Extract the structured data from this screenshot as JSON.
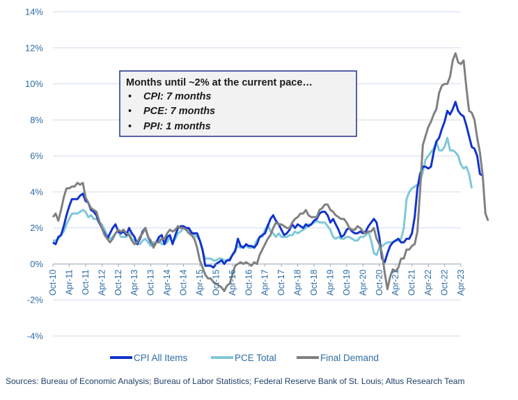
{
  "chart_data": {
    "type": "line",
    "title": "",
    "xlabel": "",
    "ylabel": "",
    "ylim": [
      -4,
      14
    ],
    "yticks": [
      -4,
      -2,
      0,
      2,
      4,
      6,
      8,
      10,
      12,
      14
    ],
    "ytick_labels": [
      "-4%",
      "-2%",
      "0%",
      "2%",
      "4%",
      "6%",
      "8%",
      "10%",
      "12%",
      "14%"
    ],
    "x_start": "2010-10",
    "xtick_labels": [
      "Oct-10",
      "Apr-11",
      "Oct-11",
      "Apr-12",
      "Oct-12",
      "Apr-13",
      "Oct-13",
      "Apr-14",
      "Oct-14",
      "Apr-15",
      "Oct-15",
      "Apr-16",
      "Oct-16",
      "Apr-17",
      "Oct-17",
      "Apr-18",
      "Oct-18",
      "Apr-19",
      "Oct-19",
      "Apr-20",
      "Oct-20",
      "Apr-21",
      "Oct-21",
      "Apr-22",
      "Oct-22",
      "Apr-23"
    ],
    "grid": true,
    "legend_position": "bottom",
    "series": [
      {
        "name": "CPI All Items",
        "color": "#1133CC",
        "start_month": 0,
        "values": [
          1.2,
          1.1,
          1.5,
          1.6,
          2.1,
          2.7,
          3.2,
          3.6,
          3.6,
          3.6,
          3.8,
          3.9,
          3.5,
          3.4,
          3.0,
          2.9,
          2.7,
          2.3,
          2.0,
          1.7,
          1.4,
          1.7,
          2.0,
          2.2,
          1.8,
          1.7,
          1.8,
          1.6,
          2.0,
          1.7,
          1.5,
          1.1,
          1.4,
          1.8,
          2.0,
          1.5,
          1.2,
          1.0,
          1.2,
          1.5,
          1.6,
          1.1,
          1.5,
          1.6,
          1.1,
          1.6,
          2.0,
          2.1,
          2.1,
          2.0,
          2.0,
          1.7,
          1.7,
          1.7,
          1.3,
          0.8,
          -0.1,
          -0.1,
          -0.1,
          -0.2,
          0.0,
          0.1,
          0.2,
          0.0,
          0.2,
          0.2,
          0.5,
          0.7,
          1.4,
          1.0,
          0.9,
          1.1,
          1.0,
          1.0,
          0.9,
          1.1,
          1.5,
          1.6,
          1.7,
          2.1,
          2.5,
          2.7,
          2.4,
          2.2,
          1.9,
          1.6,
          1.7,
          1.9,
          2.2,
          2.0,
          2.2,
          2.1,
          2.0,
          2.2,
          2.1,
          2.2,
          2.4,
          2.5,
          2.8,
          2.9,
          2.9,
          2.7,
          2.3,
          2.5,
          2.2,
          1.9,
          1.5,
          1.6,
          1.9,
          2.0,
          1.8,
          1.7,
          1.7,
          1.8,
          1.7,
          1.8,
          2.1,
          2.3,
          2.5,
          2.3,
          1.5,
          0.3,
          0.1,
          0.6,
          1.0,
          1.2,
          1.3,
          1.4,
          1.2,
          1.2,
          1.4,
          1.4,
          1.7,
          2.6,
          4.2,
          5.0,
          5.4,
          5.4,
          5.3,
          5.4,
          6.2,
          6.8,
          7.0,
          7.5,
          7.9,
          8.5,
          8.3,
          8.6,
          9.0,
          8.5,
          8.3,
          8.2,
          7.7,
          7.1,
          6.5,
          6.4,
          6.0,
          5.0,
          4.9
        ],
        "note": "monthly YoY %, Oct-10 to Apr-23"
      },
      {
        "name": "PCE Total",
        "color": "#7EC8D8",
        "start_month": 0,
        "values": [
          1.3,
          1.3,
          1.4,
          1.6,
          1.8,
          2.2,
          2.5,
          2.8,
          2.8,
          2.8,
          2.9,
          3.0,
          2.9,
          2.6,
          2.7,
          2.5,
          2.5,
          2.3,
          2.2,
          1.9,
          1.6,
          1.4,
          1.5,
          1.7,
          1.8,
          1.5,
          1.5,
          1.5,
          1.7,
          1.4,
          1.3,
          1.1,
          1.1,
          1.3,
          1.4,
          1.2,
          1.0,
          1.2,
          1.2,
          1.4,
          1.1,
          1.1,
          1.2,
          1.5,
          1.2,
          1.4,
          1.7,
          1.8,
          2.0,
          1.9,
          1.9,
          1.8,
          1.6,
          1.5,
          1.3,
          0.7,
          0.3,
          0.3,
          0.3,
          0.2,
          0.2,
          0.3,
          0.3,
          0.2,
          0.2,
          0.3,
          0.5,
          0.8,
          1.0,
          0.9,
          1.0,
          1.0,
          0.9,
          0.9,
          1.0,
          1.3,
          1.5,
          1.5,
          1.9,
          2.2,
          1.8,
          1.7,
          1.5,
          1.7,
          1.5,
          1.5,
          1.5,
          1.6,
          1.6,
          1.8,
          1.7,
          1.8,
          1.9,
          2.0,
          2.2,
          2.2,
          2.3,
          2.4,
          2.3,
          2.3,
          2.3,
          2.1,
          1.9,
          1.5,
          1.4,
          1.5,
          1.4,
          1.4,
          1.5,
          1.5,
          1.4,
          1.3,
          1.3,
          1.5,
          1.5,
          1.6,
          1.8,
          1.3,
          0.6,
          0.5,
          0.9,
          1.0,
          1.1,
          1.2,
          1.2,
          1.2,
          1.3,
          1.3,
          1.4,
          2.0,
          3.6,
          4.0,
          4.2,
          4.3,
          4.4,
          4.6,
          5.1,
          5.8,
          6.0,
          6.2,
          6.4,
          6.8,
          6.3,
          6.3,
          6.5,
          7.0,
          6.3,
          6.3,
          6.2,
          6.0,
          5.5,
          5.3,
          5.4,
          5.0,
          4.2
        ]
      },
      {
        "name": "Final Demand",
        "color": "#808080",
        "start_month": 0,
        "values": [
          2.6,
          2.8,
          2.4,
          3.0,
          3.7,
          4.2,
          4.2,
          4.3,
          4.3,
          4.5,
          4.4,
          4.5,
          3.7,
          3.4,
          3.1,
          3.0,
          2.9,
          2.4,
          2.0,
          1.6,
          1.4,
          1.2,
          1.4,
          1.7,
          1.9,
          1.8,
          1.9,
          1.7,
          1.6,
          1.3,
          1.1,
          1.2,
          1.5,
          1.7,
          2.0,
          1.5,
          1.3,
          0.9,
          1.2,
          1.2,
          1.4,
          1.4,
          1.7,
          1.9,
          1.8,
          1.9,
          2.1,
          2.0,
          2.0,
          1.9,
          1.7,
          1.6,
          1.4,
          0.9,
          0.2,
          -0.2,
          -0.6,
          -0.8,
          -0.8,
          -1.0,
          -1.1,
          -1.2,
          -1.3,
          -1.5,
          -1.2,
          -1.1,
          -0.6,
          -0.1,
          0.0,
          0.1,
          0.0,
          0.1,
          0.0,
          -0.1,
          0.1,
          0.0,
          0.5,
          0.8,
          1.1,
          1.4,
          1.6,
          2.0,
          2.3,
          2.2,
          2.2,
          2.1,
          2.0,
          2.0,
          2.3,
          2.5,
          2.6,
          2.8,
          2.8,
          3.0,
          2.7,
          2.6,
          2.6,
          2.6,
          3.0,
          3.1,
          3.3,
          3.3,
          3.0,
          2.9,
          2.7,
          2.6,
          2.5,
          2.5,
          2.3,
          2.0,
          1.9,
          1.9,
          2.1,
          2.0,
          1.8,
          1.7,
          1.8,
          1.8,
          2.0,
          1.4,
          1.1,
          0.6,
          -0.5,
          -1.4,
          -0.7,
          -0.3,
          -0.4,
          -0.2,
          0.3,
          0.3,
          0.8,
          0.8,
          1.0,
          1.1,
          1.8,
          4.1,
          6.6,
          7.1,
          7.6,
          7.9,
          8.3,
          8.6,
          9.5,
          9.9,
          10.0,
          10.0,
          10.4,
          11.3,
          11.7,
          11.2,
          11.1,
          11.3,
          9.8,
          8.5,
          8.4,
          8.0,
          7.0,
          6.2,
          4.9,
          2.8,
          2.4
        ]
      }
    ],
    "annotation": {
      "title": "Months until ~2% at the current pace…",
      "items": [
        "CPI: 7 months",
        "PCE: 7 months",
        "PPI: 1 months"
      ],
      "bullet": "•"
    }
  },
  "source_note": "Sources: Bureau of Economic Analysis; Bureau of Labor Statistics; Federal Reserve Bank of St. Louis; Altus Research Team"
}
